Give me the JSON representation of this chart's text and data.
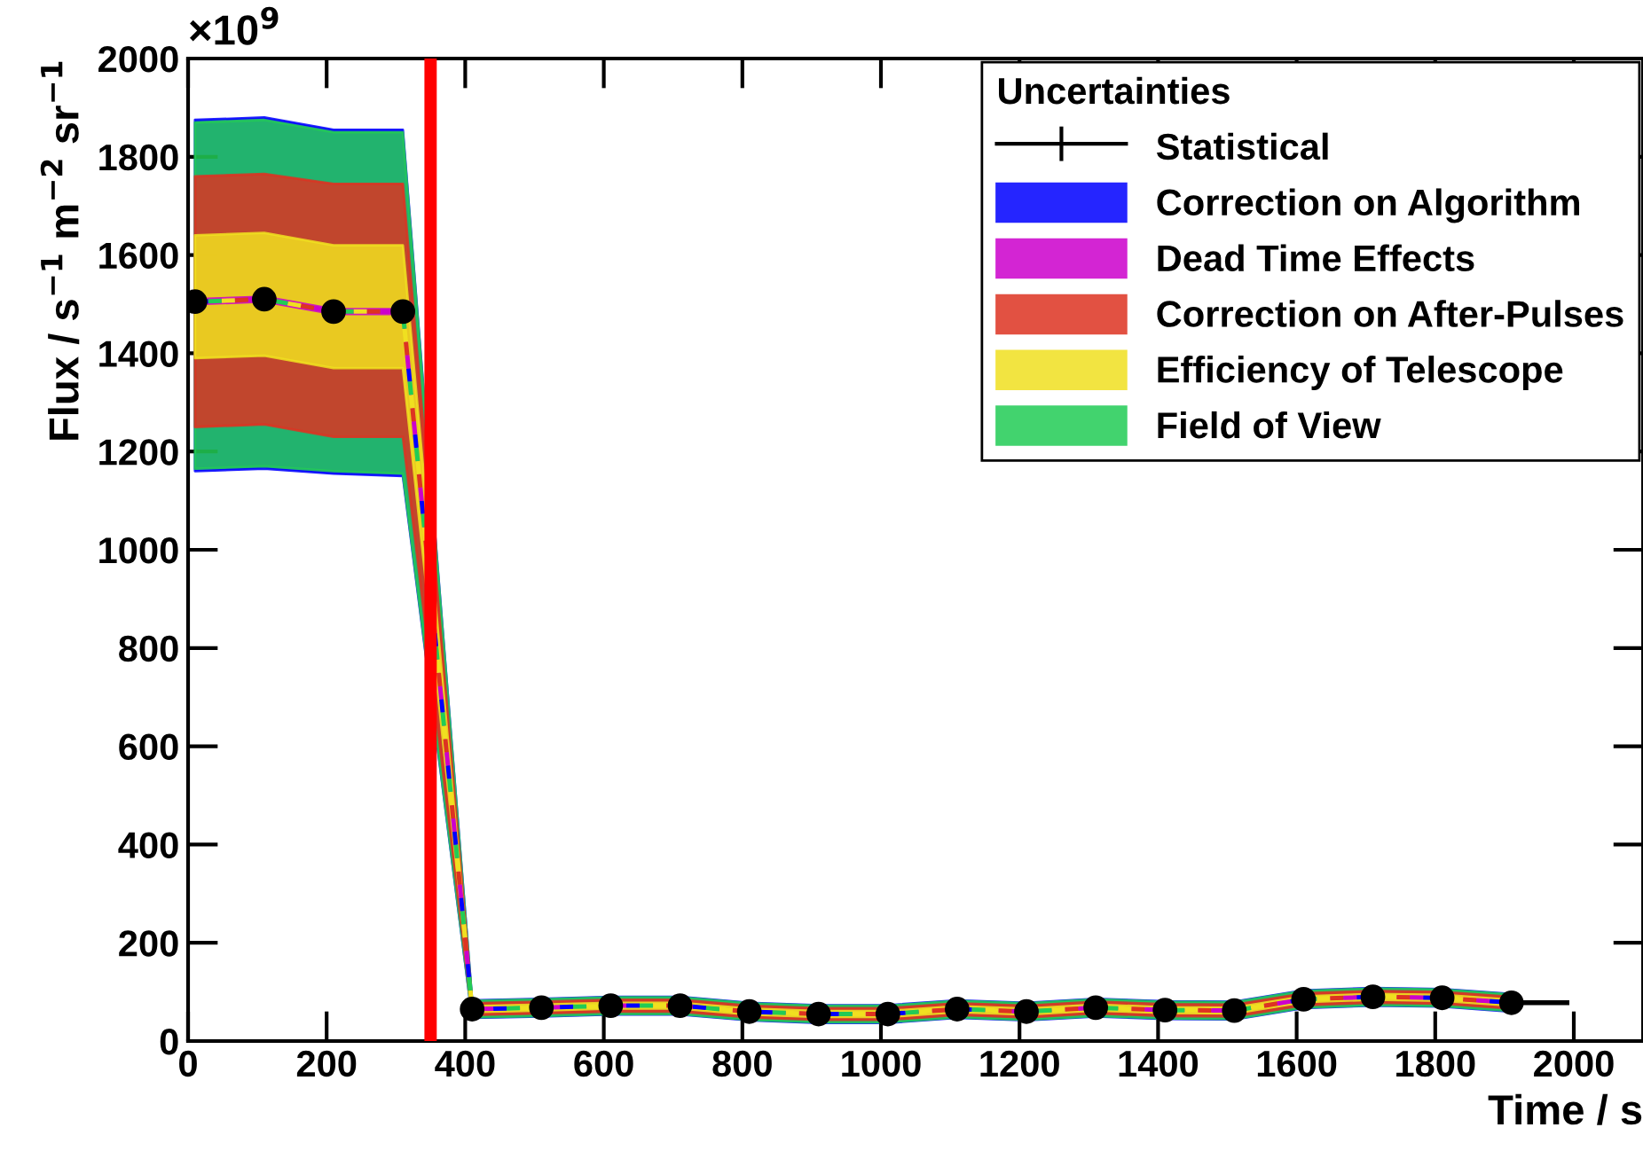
{
  "chart_data": {
    "type": "scatter",
    "xlabel": "Time / s",
    "ylabel": "Flux / s$^{−1}$ m$^{−2}$ sr$^{−1}$",
    "legend_title": "Uncertainties",
    "annotations": [
      "×10$^{9}$"
    ],
    "x": [
      10,
      110,
      210,
      310,
      410,
      510,
      610,
      710,
      810,
      910,
      1010,
      1110,
      1210,
      1310,
      1410,
      1510,
      1610,
      1710,
      1810,
      1910
    ],
    "series": [
      {
        "name": "Statistical",
        "color": "#000000",
        "marker": "circle",
        "values": [
          1505,
          1510,
          1485,
          1485,
          65,
          68,
          72,
          72,
          60,
          55,
          55,
          65,
          60,
          68,
          63,
          62,
          85,
          90,
          88,
          78
        ],
        "xerrors": [
          null,
          null,
          null,
          null,
          null,
          null,
          null,
          null,
          null,
          null,
          null,
          null,
          null,
          null,
          null,
          null,
          null,
          null,
          null,
          [
            1910,
            1990
          ]
        ]
      },
      {
        "name": "Correction on Algorithm",
        "type": "line",
        "line_style": "dotted",
        "color": "#0000ff",
        "values": [
          1505,
          1510,
          1485,
          1485,
          65,
          68,
          72,
          72,
          60,
          55,
          55,
          65,
          60,
          68,
          63,
          62,
          85,
          90,
          88,
          78
        ],
        "upper": [
          1875,
          1880,
          1855,
          1855,
          83,
          86,
          90,
          90,
          78,
          73,
          73,
          83,
          78,
          86,
          81,
          80,
          103,
          108,
          106,
          96
        ],
        "lower": [
          1160,
          1165,
          1155,
          1150,
          47,
          50,
          54,
          54,
          42,
          37,
          37,
          47,
          42,
          50,
          45,
          44,
          67,
          72,
          70,
          60
        ]
      },
      {
        "name": "Dead Time Effects",
        "type": "line",
        "line_style": "dotted",
        "color": "#cc00cc",
        "values": [
          1505,
          1510,
          1485,
          1485,
          65,
          68,
          72,
          72,
          60,
          55,
          55,
          65,
          60,
          68,
          63,
          62,
          85,
          90,
          88,
          78
        ],
        "upper": [
          1510,
          1515,
          1490,
          1490,
          66,
          69,
          73,
          73,
          61,
          56,
          56,
          66,
          61,
          69,
          64,
          63,
          86,
          91,
          89,
          79
        ],
        "lower": [
          1500,
          1505,
          1480,
          1480,
          64,
          67,
          71,
          71,
          59,
          54,
          54,
          64,
          59,
          67,
          62,
          61,
          84,
          89,
          87,
          77
        ]
      },
      {
        "name": "Correction on After-Pulses",
        "type": "line",
        "line_style": "dotted",
        "color": "#dd3322",
        "values": [
          1505,
          1510,
          1485,
          1485,
          65,
          68,
          72,
          72,
          60,
          55,
          55,
          65,
          60,
          68,
          63,
          62,
          85,
          90,
          88,
          78
        ],
        "upper": [
          1760,
          1765,
          1745,
          1745,
          77,
          80,
          84,
          84,
          72,
          67,
          67,
          77,
          72,
          80,
          75,
          74,
          97,
          102,
          100,
          90
        ],
        "lower": [
          1250,
          1255,
          1230,
          1230,
          53,
          56,
          60,
          60,
          48,
          43,
          43,
          53,
          48,
          56,
          51,
          50,
          73,
          78,
          76,
          66
        ]
      },
      {
        "name": "Efficiency of Telescope",
        "type": "line",
        "line_style": "dotted",
        "color": "#f0e020",
        "values": [
          1505,
          1510,
          1485,
          1485,
          65,
          68,
          72,
          72,
          60,
          55,
          55,
          65,
          60,
          68,
          63,
          62,
          85,
          90,
          88,
          78
        ],
        "upper": [
          1640,
          1645,
          1620,
          1620,
          71,
          74,
          78,
          78,
          66,
          61,
          61,
          71,
          66,
          74,
          69,
          68,
          91,
          96,
          94,
          84
        ],
        "lower": [
          1390,
          1395,
          1370,
          1370,
          59,
          62,
          66,
          66,
          54,
          49,
          49,
          59,
          54,
          62,
          57,
          56,
          79,
          84,
          82,
          72
        ]
      },
      {
        "name": "Field of View",
        "type": "line",
        "line_style": "dotted",
        "color": "#22cc55",
        "values": [
          1505,
          1510,
          1485,
          1485,
          65,
          68,
          72,
          72,
          60,
          55,
          55,
          65,
          60,
          68,
          63,
          62,
          85,
          90,
          88,
          78
        ],
        "upper": [
          1870,
          1875,
          1850,
          1850,
          82,
          85,
          89,
          89,
          77,
          72,
          72,
          82,
          77,
          85,
          80,
          79,
          102,
          107,
          105,
          95
        ],
        "lower": [
          1165,
          1170,
          1160,
          1155,
          48,
          51,
          55,
          55,
          43,
          38,
          38,
          48,
          43,
          51,
          46,
          45,
          68,
          73,
          71,
          61
        ]
      }
    ],
    "xlim": [
      0,
      2100
    ],
    "xticks": [
      0,
      200,
      400,
      600,
      800,
      1000,
      1200,
      1400,
      1600,
      1800,
      2000
    ],
    "ylim": [
      0,
      2000
    ],
    "yticks": [
      0,
      200,
      400,
      600,
      800,
      1000,
      1200,
      1400,
      1600,
      1800,
      2000
    ],
    "ref_lines": [
      {
        "axis": "x",
        "value": 350,
        "color": "#ff0000"
      }
    ],
    "grid": false,
    "legend": "top right"
  }
}
